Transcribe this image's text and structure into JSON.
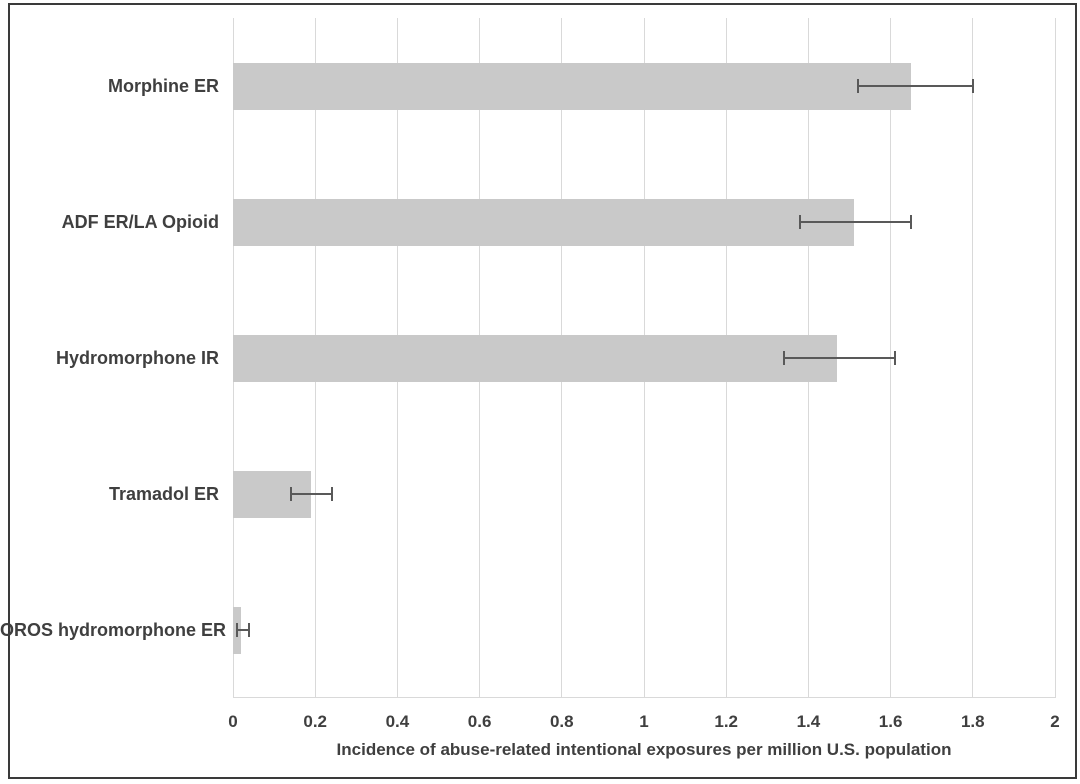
{
  "chart_data": {
    "type": "bar",
    "orientation": "horizontal",
    "title": "",
    "xlabel": "Incidence of abuse-related intentional exposures per million U.S. population",
    "ylabel": "",
    "categories": [
      "Morphine ER",
      "ADF ER/LA Opioid",
      "Hydromorphone IR",
      "Tramadol ER",
      "OROS hydromorphone ER"
    ],
    "values": [
      1.65,
      1.51,
      1.47,
      0.19,
      0.02
    ],
    "error_bars": [
      {
        "low": 1.52,
        "high": 1.8
      },
      {
        "low": 1.38,
        "high": 1.65
      },
      {
        "low": 1.34,
        "high": 1.61
      },
      {
        "low": 0.14,
        "high": 0.24
      },
      {
        "low": 0.01,
        "high": 0.04
      }
    ],
    "xlim": [
      0,
      2
    ],
    "xticks": [
      0,
      0.2,
      0.4,
      0.6,
      0.8,
      1,
      1.2,
      1.4,
      1.6,
      1.8,
      2
    ],
    "xtick_labels": [
      "0",
      "0.2",
      "0.4",
      "0.6",
      "0.8",
      "1",
      "1.2",
      "1.4",
      "1.6",
      "1.8",
      "2"
    ],
    "grid": "vertical",
    "legend": false,
    "colors": {
      "bar_fill": "#c9c9c9",
      "gridline": "#d9d9d9",
      "error_bar": "#595959",
      "text": "#3f3f3f",
      "border": "#3a3a3a",
      "background": "#ffffff"
    }
  }
}
